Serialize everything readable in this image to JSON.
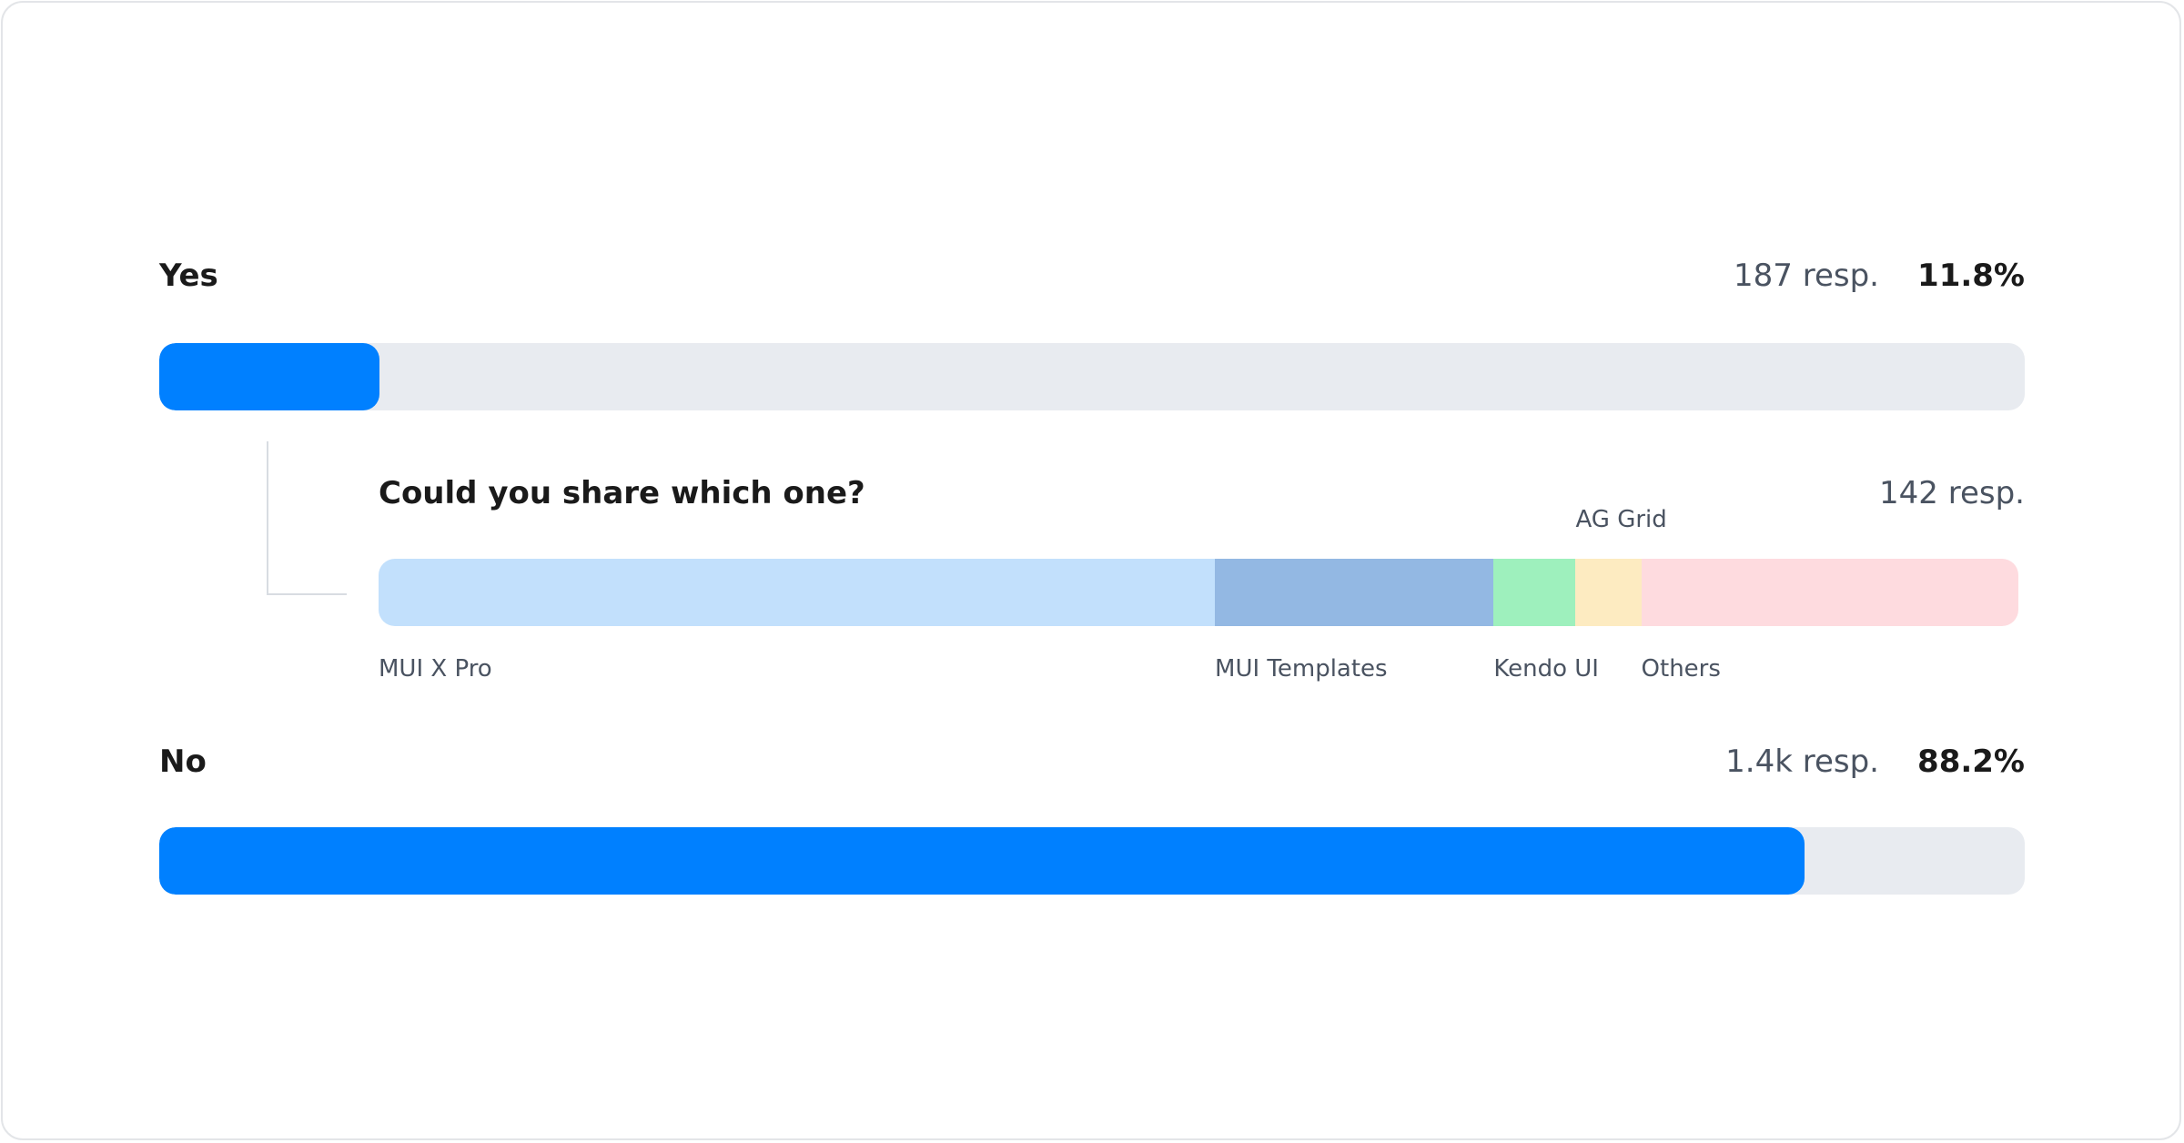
{
  "chart_data": {
    "type": "bar",
    "answers": [
      {
        "label": "Yes",
        "responses": "187 resp.",
        "percent_label": "11.8%",
        "value": 11.8
      },
      {
        "label": "No",
        "responses": "1.4k resp.",
        "percent_label": "88.2%",
        "value": 88.2
      }
    ],
    "followup": {
      "question": "Could you share which one?",
      "responses": "142 resp.",
      "type": "stacked-bar",
      "segments": [
        {
          "name": "MUI X Pro",
          "share": 51,
          "color": "#c2e0fc"
        },
        {
          "name": "MUI Templates",
          "share": 17,
          "color": "#93b8e3"
        },
        {
          "name": "Kendo UI",
          "share": 5,
          "color": "#9ef0bd"
        },
        {
          "name": "AG Grid",
          "share": 4,
          "color": "#fdebc1"
        },
        {
          "name": "Others",
          "share": 23,
          "color": "#fedbdf"
        }
      ]
    },
    "colors": {
      "fill": "#0080ff",
      "track": "#e8ebf0"
    }
  }
}
